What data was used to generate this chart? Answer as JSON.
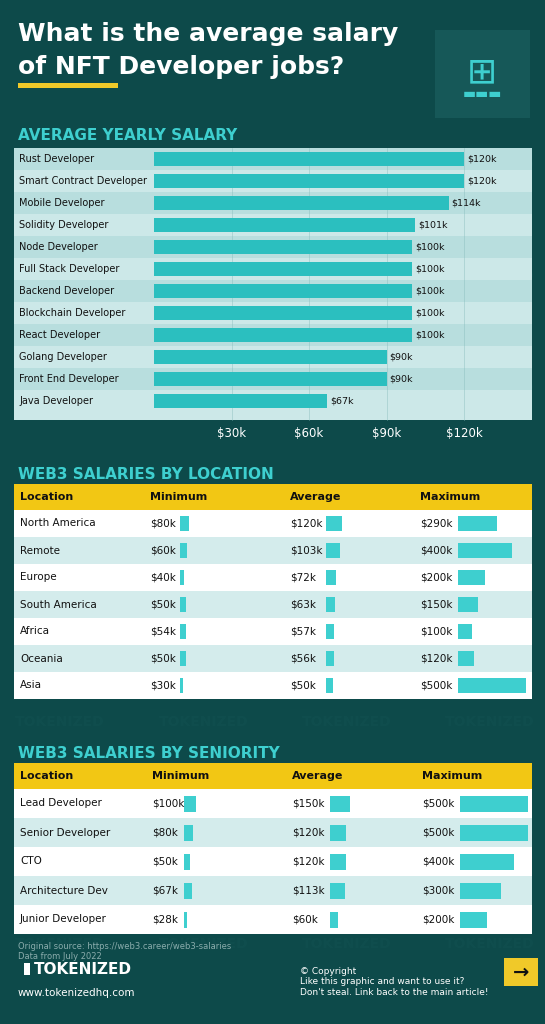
{
  "bg_color": "#0d4a4a",
  "title_line1": "What is the average salary",
  "title_line2": "of NFT Developer jobs?",
  "title_color": "#ffffff",
  "underline_color": "#f0c929",
  "section1_title": "AVERAGE YEARLY SALARY",
  "section1_color": "#3ecfcf",
  "bar_labels": [
    "Rust Developer",
    "Smart Contract Developer",
    "Mobile Developer",
    "Solidity Developer",
    "Node Developer",
    "Full Stack Developer",
    "Backend Developer",
    "Blockchain Developer",
    "React Developer",
    "Golang Developer",
    "Front End Developer",
    "Java Developer"
  ],
  "bar_values": [
    120,
    120,
    114,
    101,
    100,
    100,
    100,
    100,
    100,
    90,
    90,
    67
  ],
  "bar_value_labels": [
    "$120k",
    "$120k",
    "$114k",
    "$101k",
    "$100k",
    "$100k",
    "$100k",
    "$100k",
    "$100k",
    "$90k",
    "$90k",
    "$67k"
  ],
  "bar_xtick_labels": [
    "$30k",
    "$60k",
    "$90k",
    "$120k"
  ],
  "bar_xtick_vals": [
    30,
    60,
    90,
    120
  ],
  "bar_scale_max": 130,
  "section2_title": "WEB3 SALARIES BY LOCATION",
  "section2_color": "#3ecfcf",
  "section3_title": "WEB3 SALARIES BY SENIORITY",
  "section3_color": "#3ecfcf",
  "table_header_bg": "#f2c714",
  "table_bar_color": "#3ecfcf",
  "loc_headers": [
    "Location",
    "Minimum",
    "Average",
    "Maximum"
  ],
  "loc_data": [
    [
      "North America",
      "$80k",
      80,
      "$120k",
      120,
      "$290k",
      290
    ],
    [
      "Remote",
      "$60k",
      60,
      "$103k",
      103,
      "$400k",
      400
    ],
    [
      "Europe",
      "$40k",
      40,
      "$72k",
      72,
      "$200k",
      200
    ],
    [
      "South America",
      "$50k",
      50,
      "$63k",
      63,
      "$150k",
      150
    ],
    [
      "Africa",
      "$54k",
      54,
      "$57k",
      57,
      "$100k",
      100
    ],
    [
      "Oceania",
      "$50k",
      50,
      "$56k",
      56,
      "$120k",
      120
    ],
    [
      "Asia",
      "$30k",
      30,
      "$50k",
      50,
      "$500k",
      500
    ]
  ],
  "sen_headers": [
    "Location",
    "Minimum",
    "Average",
    "Maximum"
  ],
  "sen_data": [
    [
      "Lead Developer",
      "$100k",
      100,
      "$150k",
      150,
      "$500k",
      500
    ],
    [
      "Senior Developer",
      "$80k",
      80,
      "$120k",
      120,
      "$500k",
      500
    ],
    [
      "CTO",
      "$50k",
      50,
      "$120k",
      120,
      "$400k",
      400
    ],
    [
      "Architecture Dev",
      "$67k",
      67,
      "$113k",
      113,
      "$300k",
      300
    ],
    [
      "Junior Developer",
      "$28k",
      28,
      "$60k",
      60,
      "$200k",
      200
    ]
  ],
  "footer_source": "Original source: https://web3.career/web3-salaries\nData from July 2022",
  "footer_brand": "TOKENIZED",
  "footer_url": "www.tokenizedhq.com",
  "footer_copy": "© Copyright\nLike this graphic and want to use it?\nDon't steal. Link back to the main article!"
}
